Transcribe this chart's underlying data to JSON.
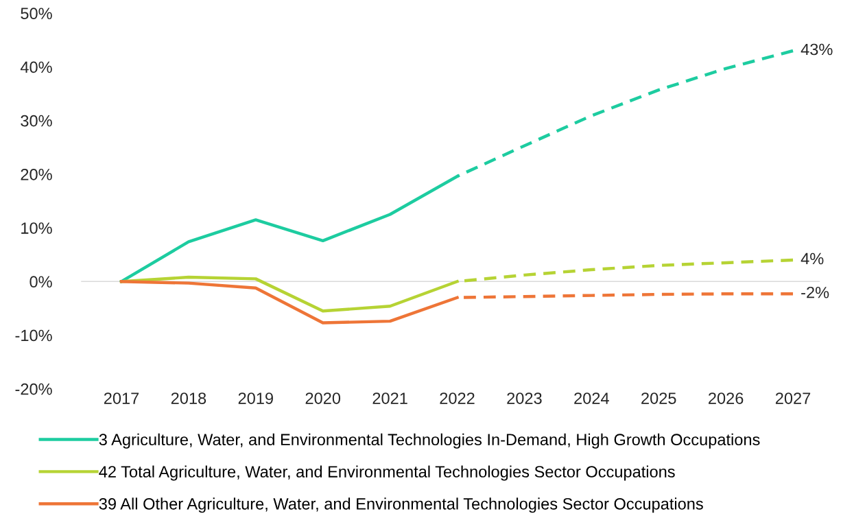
{
  "chart_data": {
    "type": "line",
    "categories": [
      "2017",
      "2018",
      "2019",
      "2020",
      "2021",
      "2022",
      "2023",
      "2024",
      "2025",
      "2026",
      "2027"
    ],
    "ylim": [
      -20,
      50
    ],
    "yticks": [
      {
        "value": -20,
        "label": "-20%"
      },
      {
        "value": -10,
        "label": "-10%"
      },
      {
        "value": 0,
        "label": "0%"
      },
      {
        "value": 10,
        "label": "10%"
      },
      {
        "value": 20,
        "label": "20%"
      },
      {
        "value": 30,
        "label": "30%"
      },
      {
        "value": 40,
        "label": "40%"
      },
      {
        "value": 50,
        "label": "50%"
      }
    ],
    "grid": false,
    "legend": "bottom",
    "marker": "none",
    "ref_lines": [
      {
        "axis": "y",
        "value": 0,
        "color": "#d9d9d9"
      }
    ],
    "series": [
      {
        "name": "3 Agriculture, Water, and Environmental Technologies In-Demand, High Growth Occupations",
        "color": "#1dcca0",
        "line_style": "solid",
        "values": [
          0,
          7.4,
          11.5,
          7.6,
          12.5,
          19.6,
          null,
          null,
          null,
          null,
          null
        ]
      },
      {
        "name": "42 Total Agriculture, Water, and Environmental Technologies Sector Occupations",
        "color": "#b6d334",
        "line_style": "solid",
        "values": [
          0,
          0.8,
          0.5,
          -5.5,
          -4.6,
          0,
          null,
          null,
          null,
          null,
          null
        ]
      },
      {
        "name": "39 All Other Agriculture, Water, and Environmental Technologies Sector Occupations",
        "color": "#ee7537",
        "line_style": "solid",
        "values": [
          0,
          -0.3,
          -1.2,
          -7.7,
          -7.4,
          -3.0,
          null,
          null,
          null,
          null,
          null
        ]
      },
      {
        "color": "#1dcca0",
        "line_style": "dashed",
        "values": [
          null,
          null,
          null,
          null,
          null,
          19.6,
          25.3,
          30.9,
          35.7,
          39.7,
          43
        ],
        "value_labels": [
          null,
          null,
          null,
          null,
          null,
          null,
          null,
          null,
          null,
          null,
          "43%"
        ]
      },
      {
        "color": "#b6d334",
        "line_style": "dashed",
        "values": [
          null,
          null,
          null,
          null,
          null,
          0,
          1.2,
          2.2,
          3.0,
          3.5,
          4
        ],
        "value_labels": [
          null,
          null,
          null,
          null,
          null,
          null,
          null,
          null,
          null,
          null,
          "4%"
        ]
      },
      {
        "color": "#ee7537",
        "line_style": "dashed",
        "values": [
          null,
          null,
          null,
          null,
          null,
          -3.0,
          -2.8,
          -2.6,
          -2.4,
          -2.3,
          -2.3
        ],
        "value_labels": [
          null,
          null,
          null,
          null,
          null,
          null,
          null,
          null,
          null,
          null,
          "-2%"
        ]
      }
    ]
  }
}
